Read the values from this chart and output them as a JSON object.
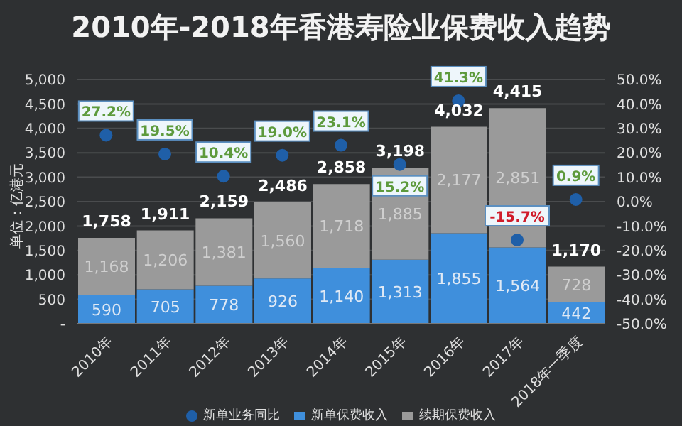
{
  "chart_data": {
    "type": "bar",
    "title": "2010年-2018年香港寿险业保费收入趋势",
    "ylabel": "单位：亿港元",
    "stacked": true,
    "grid": "y",
    "legend": "bottom",
    "categories": [
      "2010年",
      "2011年",
      "2012年",
      "2013年",
      "2014年",
      "2015年",
      "2016年",
      "2017年",
      "2018年一季度"
    ],
    "series": [
      {
        "name": "新单保费收入",
        "color": "#3f8fdc",
        "values": [
          590,
          705,
          778,
          926,
          1140,
          1313,
          1855,
          1564,
          442
        ],
        "value_labels": [
          "590",
          "705",
          "778",
          "926",
          "1,140",
          "1,313",
          "1,855",
          "1,564",
          "442"
        ]
      },
      {
        "name": "续期保费收入",
        "color": "#9a9a9a",
        "values": [
          1168,
          1206,
          1381,
          1560,
          1718,
          1885,
          2177,
          2851,
          728
        ],
        "value_labels": [
          "1,168",
          "1,206",
          "1,381",
          "1,560",
          "1,718",
          "1,885",
          "2,177",
          "2,851",
          "728"
        ]
      },
      {
        "name": "新单业务同比",
        "type": "scatter",
        "axis": "y2",
        "color": "#1f5fa8",
        "marker": "circle",
        "x": [
          "2010年",
          "2011年",
          "2012年",
          "2013年",
          "2014年",
          "2015年",
          "2016年",
          "2017年",
          "2018年一季度"
        ],
        "values": [
          27.2,
          19.5,
          10.4,
          19.0,
          23.1,
          15.2,
          41.3,
          -15.7,
          0.9
        ],
        "value_labels": [
          "27.2%",
          "19.5%",
          "10.4%",
          "19.0%",
          "23.1%",
          "15.2%",
          "41.3%",
          "-15.7%",
          "0.9%"
        ]
      }
    ],
    "totals": [
      "1,758",
      "1,911",
      "2,159",
      "2,486",
      "2,858",
      "3,198",
      "4,032",
      "4,415",
      "1,170"
    ],
    "ylim": [
      0,
      5000
    ],
    "yticks": [
      {
        "value": 0,
        "label": "-"
      },
      {
        "value": 500,
        "label": "500"
      },
      {
        "value": 1000,
        "label": "1,000"
      },
      {
        "value": 1500,
        "label": "1,500"
      },
      {
        "value": 2000,
        "label": "2,000"
      },
      {
        "value": 2500,
        "label": "2,500"
      },
      {
        "value": 3000,
        "label": "3,000"
      },
      {
        "value": 3500,
        "label": "3,500"
      },
      {
        "value": 4000,
        "label": "4,000"
      },
      {
        "value": 4500,
        "label": "4,500"
      },
      {
        "value": 5000,
        "label": "5,000"
      }
    ],
    "y2lim": [
      -50,
      50
    ],
    "y2ticks": [
      {
        "value": -50,
        "label": "-50.0%"
      },
      {
        "value": -40,
        "label": "-40.0%"
      },
      {
        "value": -30,
        "label": "-30.0%"
      },
      {
        "value": -20,
        "label": "-20.0%"
      },
      {
        "value": -10,
        "label": "-10.0%"
      },
      {
        "value": 0,
        "label": "0.0%"
      },
      {
        "value": 10,
        "label": "10.0%"
      },
      {
        "value": 20,
        "label": "20.0%"
      },
      {
        "value": 30,
        "label": "30.0%"
      },
      {
        "value": 40,
        "label": "40.0%"
      },
      {
        "value": 50,
        "label": "50.0%"
      }
    ]
  }
}
